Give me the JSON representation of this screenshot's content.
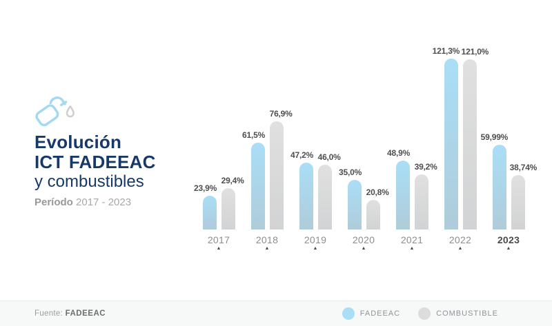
{
  "header": {
    "icon": "fuel-pump-icon",
    "title_line1": "Evolución",
    "title_line2": "ICT FADEEAC",
    "title_line3": "y combustibles",
    "period_label": "Período",
    "period_range": "2017 - 2023"
  },
  "chart_data": {
    "type": "bar",
    "title": "Evolución ICT FADEEAC y combustibles",
    "categories": [
      "2017",
      "2018",
      "2019",
      "2020",
      "2021",
      "2022",
      "2023"
    ],
    "series": [
      {
        "name": "FADEEAC",
        "color_top": "#a9def7",
        "color_bottom": "#afccd9",
        "values": [
          23.9,
          61.5,
          47.2,
          35.0,
          48.9,
          121.3,
          59.99
        ],
        "labels": [
          "23,9%",
          "61,5%",
          "47,2%",
          "35,0%",
          "48,9%",
          "121,3%",
          "59,99%"
        ]
      },
      {
        "name": "COMBUSTIBLE",
        "color_top": "#e0e0e0",
        "color_bottom": "#d2d3d4",
        "values": [
          29.4,
          76.9,
          46.0,
          20.8,
          39.2,
          121.0,
          38.74
        ],
        "labels": [
          "29,4%",
          "76,9%",
          "46,0%",
          "20,8%",
          "39,2%",
          "121,0%",
          "38,74%"
        ]
      }
    ],
    "ylim": [
      0,
      125
    ],
    "grid": false,
    "axis_lines": false,
    "legend_position": "bottom-right",
    "highlight_category": "2023",
    "value_label_decimal_separator": ","
  },
  "legend": {
    "items": [
      {
        "label": "FADEEAC",
        "color": "#a9def7"
      },
      {
        "label": "COMBUSTIBLE",
        "color": "#dcdcdc"
      }
    ]
  },
  "footer": {
    "source_label": "Fuente:",
    "source_value": "FADEEAC"
  },
  "colors": {
    "title_navy": "#17396a",
    "period_gray": "#a8a8a8",
    "value_label": "#4e4e4e",
    "year_label": "#8d8d8d",
    "year_highlight": "#4a4a4a",
    "footer_bg": "#f7f8f8",
    "bar_blue": "#a9def7",
    "bar_gray": "#dcdcdc"
  }
}
